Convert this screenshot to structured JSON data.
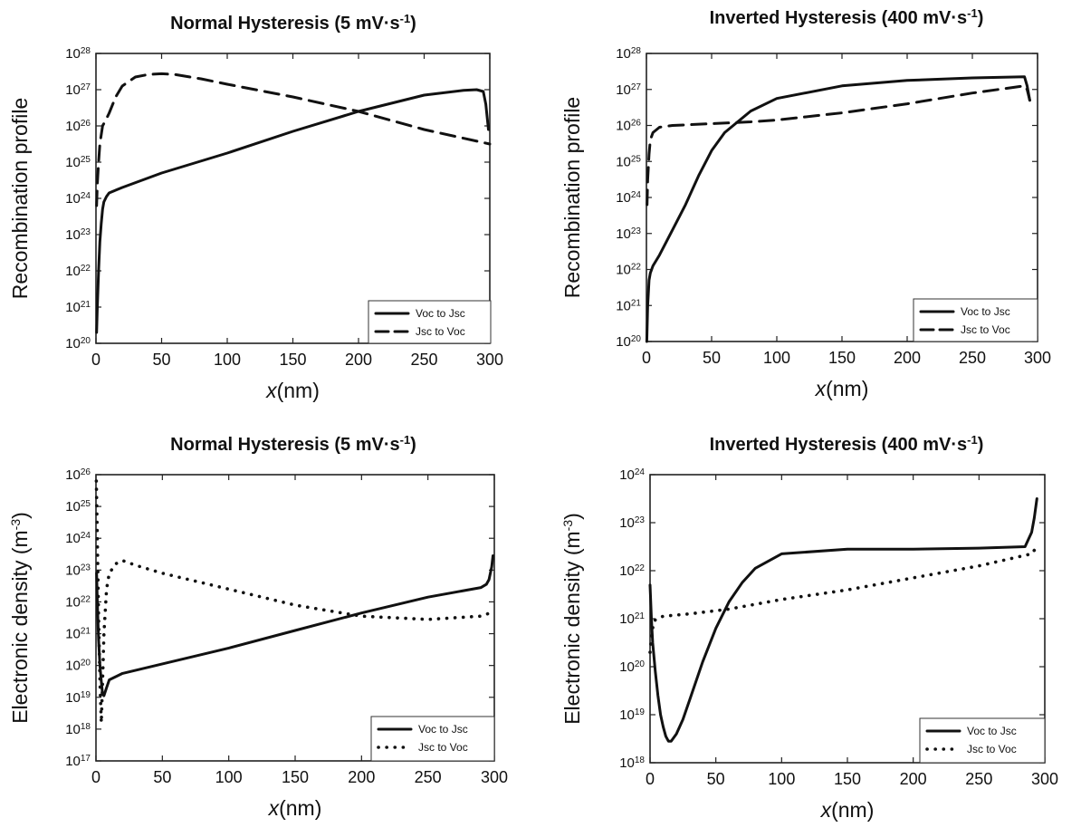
{
  "chart_data": [
    {
      "type": "line",
      "title": "Normal Hysteresis (5 mV·s",
      "title_sup": "-1",
      "title_end": ")",
      "xlabel_italic": "x",
      "xlabel_rest": "(nm)",
      "ylabel": "Recombination profile",
      "ylabel_sup": "",
      "ylabel_end": "",
      "xlim": [
        0,
        300
      ],
      "ylim_exp": [
        20,
        28
      ],
      "y_scale": "log",
      "x_ticks": [
        "0",
        "50",
        "100",
        "150",
        "200",
        "250",
        "300"
      ],
      "y_ticks": [
        {
          "base": "10",
          "exp": "20"
        },
        {
          "base": "10",
          "exp": "21"
        },
        {
          "base": "10",
          "exp": "22"
        },
        {
          "base": "10",
          "exp": "23"
        },
        {
          "base": "10",
          "exp": "24"
        },
        {
          "base": "10",
          "exp": "25"
        },
        {
          "base": "10",
          "exp": "26"
        },
        {
          "base": "10",
          "exp": "27"
        },
        {
          "base": "10",
          "exp": "28"
        }
      ],
      "legend_position": "bottom-right",
      "series": [
        {
          "name": "Voc to Jsc",
          "style": "solid",
          "x": [
            0.5,
            1,
            2,
            3,
            4,
            5,
            6,
            8,
            10,
            20,
            50,
            100,
            150,
            200,
            250,
            280,
            290,
            295,
            297,
            299
          ],
          "y_exp": [
            20.3,
            21.0,
            22.0,
            22.8,
            23.3,
            23.7,
            23.9,
            24.05,
            24.15,
            24.3,
            24.7,
            25.25,
            25.85,
            26.4,
            26.85,
            26.98,
            27.0,
            26.95,
            26.6,
            25.9
          ]
        },
        {
          "name": "Jsc to Voc",
          "style": "dashed",
          "x": [
            0.5,
            1,
            2,
            3,
            5,
            8,
            10,
            15,
            20,
            30,
            40,
            50,
            60,
            80,
            100,
            150,
            200,
            250,
            300
          ],
          "y_exp": [
            23.8,
            24.4,
            25.0,
            25.5,
            26.0,
            26.2,
            26.35,
            26.8,
            27.1,
            27.35,
            27.42,
            27.44,
            27.42,
            27.3,
            27.15,
            26.8,
            26.4,
            25.9,
            25.5
          ]
        }
      ]
    },
    {
      "type": "line",
      "title": "Inverted Hysteresis (400 mV·s",
      "title_sup": "-1",
      "title_end": ")",
      "xlabel_italic": "x",
      "xlabel_rest": "(nm)",
      "ylabel": "Recombination profile",
      "ylabel_sup": "",
      "ylabel_end": "",
      "xlim": [
        0,
        300
      ],
      "ylim_exp": [
        20,
        28
      ],
      "y_scale": "log",
      "x_ticks": [
        "0",
        "50",
        "100",
        "150",
        "200",
        "250",
        "300"
      ],
      "y_ticks": [
        {
          "base": "10",
          "exp": "20"
        },
        {
          "base": "10",
          "exp": "21"
        },
        {
          "base": "10",
          "exp": "22"
        },
        {
          "base": "10",
          "exp": "23"
        },
        {
          "base": "10",
          "exp": "24"
        },
        {
          "base": "10",
          "exp": "25"
        },
        {
          "base": "10",
          "exp": "26"
        },
        {
          "base": "10",
          "exp": "27"
        },
        {
          "base": "10",
          "exp": "28"
        }
      ],
      "legend_position": "bottom-right",
      "series": [
        {
          "name": "Voc to Jsc",
          "style": "solid",
          "x": [
            0.3,
            1,
            2,
            3,
            5,
            10,
            20,
            30,
            40,
            50,
            60,
            70,
            80,
            100,
            150,
            200,
            250,
            290,
            292,
            294
          ],
          "y_exp": [
            20.0,
            21.0,
            21.7,
            21.9,
            22.1,
            22.4,
            23.1,
            23.8,
            24.6,
            25.3,
            25.8,
            26.1,
            26.4,
            26.75,
            27.1,
            27.25,
            27.32,
            27.35,
            27.1,
            26.7
          ]
        },
        {
          "name": "Jsc to Voc",
          "style": "dashed",
          "x": [
            0.5,
            1,
            2,
            3,
            5,
            10,
            20,
            50,
            80,
            100,
            150,
            200,
            250,
            290,
            292,
            294
          ],
          "y_exp": [
            23.8,
            24.5,
            25.2,
            25.6,
            25.8,
            25.95,
            26.0,
            26.05,
            26.1,
            26.15,
            26.35,
            26.6,
            26.9,
            27.1,
            27.0,
            26.7
          ]
        }
      ]
    },
    {
      "type": "line",
      "title": "Normal Hysteresis (5 mV·s",
      "title_sup": "-1",
      "title_end": ")",
      "xlabel_italic": "x",
      "xlabel_rest": "(nm)",
      "ylabel": "Electronic density (m",
      "ylabel_sup": "-3",
      "ylabel_end": ")",
      "xlim": [
        0,
        300
      ],
      "ylim_exp": [
        17,
        26
      ],
      "y_scale": "log",
      "x_ticks": [
        "0",
        "50",
        "100",
        "150",
        "200",
        "250",
        "300"
      ],
      "y_ticks": [
        {
          "base": "10",
          "exp": "17"
        },
        {
          "base": "10",
          "exp": "18"
        },
        {
          "base": "10",
          "exp": "19"
        },
        {
          "base": "10",
          "exp": "20"
        },
        {
          "base": "10",
          "exp": "21"
        },
        {
          "base": "10",
          "exp": "22"
        },
        {
          "base": "10",
          "exp": "23"
        },
        {
          "base": "10",
          "exp": "24"
        },
        {
          "base": "10",
          "exp": "25"
        },
        {
          "base": "10",
          "exp": "26"
        }
      ],
      "legend_position": "bottom-right",
      "series": [
        {
          "name": "Voc to Jsc",
          "style": "solid",
          "x": [
            0.5,
            1,
            2,
            3,
            4,
            5,
            6,
            8,
            10,
            20,
            50,
            100,
            150,
            200,
            250,
            290,
            294,
            296,
            298,
            299
          ],
          "y_exp": [
            22.9,
            22.0,
            20.8,
            20.0,
            19.5,
            19.1,
            19.05,
            19.3,
            19.55,
            19.75,
            20.05,
            20.55,
            21.1,
            21.65,
            22.15,
            22.45,
            22.55,
            22.7,
            23.1,
            23.45
          ]
        },
        {
          "name": "Jsc to Voc",
          "style": "dotted",
          "x": [
            0.3,
            0.8,
            1.5,
            2,
            3,
            4,
            5,
            6,
            8,
            10,
            15,
            20,
            30,
            50,
            100,
            150,
            200,
            250,
            290,
            300
          ],
          "y_exp": [
            25.8,
            24.5,
            22.8,
            21.5,
            19.5,
            18.2,
            19.5,
            21.0,
            22.4,
            22.9,
            23.2,
            23.3,
            23.15,
            22.9,
            22.4,
            21.9,
            21.55,
            21.45,
            21.55,
            21.7
          ]
        }
      ]
    },
    {
      "type": "line",
      "title": "Inverted Hysteresis (400 mV·s",
      "title_sup": "-1",
      "title_end": ")",
      "xlabel_italic": "x",
      "xlabel_rest": "(nm)",
      "ylabel": "Electronic density (m",
      "ylabel_sup": "-3",
      "ylabel_end": ")",
      "xlim": [
        0,
        300
      ],
      "ylim_exp": [
        18,
        24
      ],
      "y_scale": "log",
      "x_ticks": [
        "0",
        "50",
        "100",
        "150",
        "200",
        "250",
        "300"
      ],
      "y_ticks": [
        {
          "base": "10",
          "exp": "18"
        },
        {
          "base": "10",
          "exp": "19"
        },
        {
          "base": "10",
          "exp": "20"
        },
        {
          "base": "10",
          "exp": "21"
        },
        {
          "base": "10",
          "exp": "22"
        },
        {
          "base": "10",
          "exp": "23"
        },
        {
          "base": "10",
          "exp": "24"
        }
      ],
      "legend_position": "bottom-right",
      "series": [
        {
          "name": "Voc to Jsc",
          "style": "solid",
          "x": [
            0,
            1,
            2,
            4,
            6,
            8,
            10,
            12,
            14,
            16,
            20,
            25,
            30,
            40,
            50,
            60,
            70,
            80,
            100,
            150,
            200,
            250,
            285,
            290,
            292,
            294
          ],
          "y_exp": [
            21.7,
            21.0,
            20.5,
            19.9,
            19.4,
            19.0,
            18.75,
            18.55,
            18.45,
            18.45,
            18.6,
            18.9,
            19.3,
            20.1,
            20.8,
            21.35,
            21.75,
            22.05,
            22.35,
            22.45,
            22.45,
            22.47,
            22.5,
            22.8,
            23.1,
            23.5
          ]
        },
        {
          "name": "Jsc to Voc",
          "style": "dotted",
          "x": [
            0,
            1,
            2,
            3,
            5,
            10,
            30,
            60,
            100,
            150,
            200,
            250,
            290,
            294
          ],
          "y_exp": [
            20.3,
            20.6,
            20.8,
            20.95,
            21.0,
            21.05,
            21.1,
            21.2,
            21.4,
            21.6,
            21.85,
            22.1,
            22.35,
            22.5
          ]
        }
      ]
    }
  ]
}
